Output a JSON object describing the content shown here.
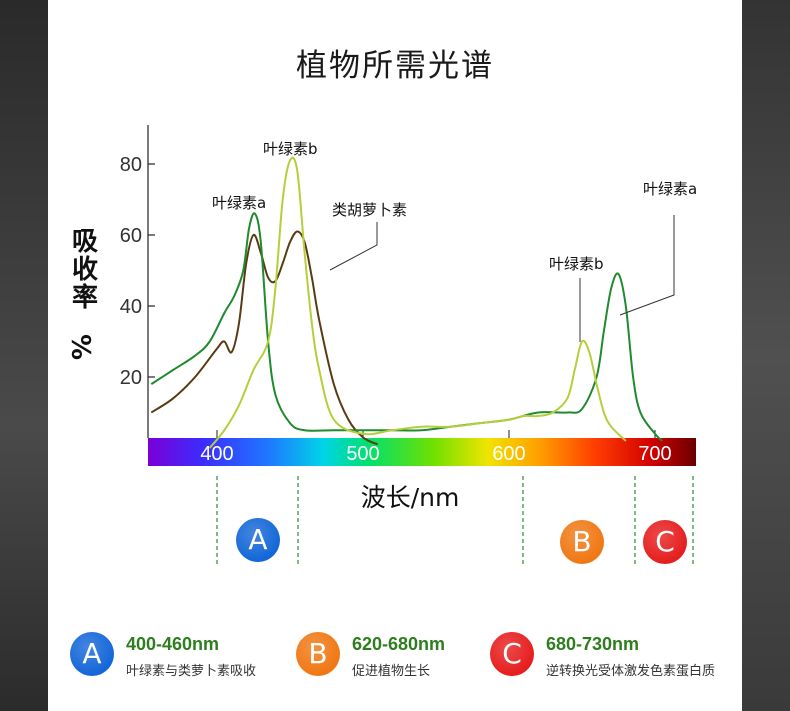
{
  "title": "植物所需光谱",
  "chart_data": {
    "type": "line",
    "ylabel": "吸收率%",
    "xlabel": "波长/nm",
    "y_ticks": [
      "20",
      "40",
      "60",
      "80"
    ],
    "x_ticks": [
      "400",
      "500",
      "600",
      "700"
    ],
    "xlim": [
      355,
      730
    ],
    "ylim": [
      0,
      95
    ],
    "series": [
      {
        "name": "叶绿素a",
        "color": "#1f8a2e",
        "x": [
          355,
          370,
          385,
          395,
          405,
          412,
          418,
          422,
          426,
          430,
          435,
          440,
          450,
          460,
          480,
          500,
          520,
          540,
          560,
          580,
          600,
          620,
          640,
          650,
          660,
          665,
          670,
          675,
          680,
          685,
          690,
          700,
          705
        ],
        "y": [
          18,
          22,
          26,
          30,
          38,
          43,
          50,
          62,
          66,
          58,
          30,
          15,
          7,
          5,
          5,
          5,
          5,
          5,
          6,
          7,
          8,
          10,
          10,
          11,
          20,
          33,
          45,
          49,
          40,
          20,
          10,
          4,
          2
        ]
      },
      {
        "name": "叶绿素b",
        "color": "#b5cf3b",
        "x": [
          395,
          405,
          415,
          425,
          435,
          440,
          445,
          450,
          455,
          460,
          465,
          470,
          480,
          500,
          520,
          540,
          560,
          580,
          600,
          610,
          620,
          630,
          640,
          645,
          650,
          655,
          660,
          665,
          670,
          680
        ],
        "y": [
          0,
          5,
          12,
          22,
          30,
          45,
          70,
          81,
          78,
          55,
          35,
          22,
          8,
          4,
          5,
          6,
          6,
          7,
          8,
          9,
          9,
          10,
          14,
          22,
          30,
          27,
          18,
          10,
          6,
          2
        ]
      },
      {
        "name": "类胡萝卜素",
        "color": "#5a3a12",
        "x": [
          355,
          370,
          385,
          400,
          405,
          410,
          415,
          420,
          425,
          430,
          435,
          440,
          445,
          450,
          455,
          460,
          465,
          470,
          480,
          490,
          500,
          510
        ],
        "y": [
          10,
          14,
          20,
          28,
          30,
          27,
          35,
          52,
          60,
          55,
          48,
          47,
          52,
          58,
          61,
          58,
          48,
          36,
          18,
          8,
          3,
          1
        ]
      }
    ],
    "spectrum_labels": {
      "chl_a_blue": "叶绿素a",
      "chl_b_blue": "叶绿素b",
      "carotenoid": "类胡萝卜素",
      "chl_b_red": "叶绿素b",
      "chl_a_red": "叶绿素a"
    }
  },
  "zones": [
    {
      "letter": "A",
      "color": "#1467d8"
    },
    {
      "letter": "B",
      "color": "#f07814"
    },
    {
      "letter": "C",
      "color": "#e61e1e"
    }
  ],
  "legend": [
    {
      "letter": "A",
      "range": "400-460nm",
      "desc": "叶绿素与类萝卜素吸收",
      "color": "#1467d8"
    },
    {
      "letter": "B",
      "range": "620-680nm",
      "desc": "促进植物生长",
      "color": "#f07814"
    },
    {
      "letter": "C",
      "range": "680-730nm",
      "desc": "逆转换光受体激发色素蛋白质",
      "color": "#e61e1e"
    }
  ]
}
